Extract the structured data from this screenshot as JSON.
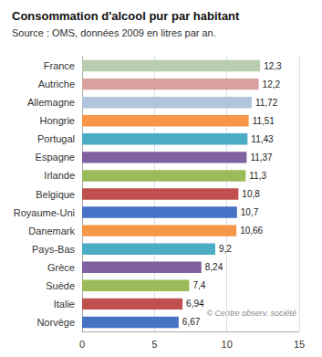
{
  "chart_data": {
    "type": "bar",
    "orientation": "horizontal",
    "title": "Consommation d'alcool pur par habitant",
    "subtitle": "Source : OMS, données 2009 en litres par an.",
    "annotations": [
      "© Centre observ. société"
    ],
    "categories": [
      "Norvège",
      "Italie",
      "Suède",
      "Grèce",
      "Pays-Bas",
      "Danemark",
      "Royaume-Uni",
      "Belgique",
      "Irlande",
      "Espagne",
      "Portugal",
      "Hongrie",
      "Allemagne",
      "Autriche",
      "France"
    ],
    "values": [
      6.67,
      6.94,
      7.4,
      8.24,
      9.2,
      10.66,
      10.7,
      10.8,
      11.3,
      11.37,
      11.43,
      11.51,
      11.72,
      12.2,
      12.3
    ],
    "value_labels": [
      "6,67",
      "6,94",
      "7,4",
      "8,24",
      "9,2",
      "10,66",
      "10,7",
      "10,8",
      "11,3",
      "11,37",
      "11,43",
      "11,51",
      "11,72",
      "12,2",
      "12,3"
    ],
    "colors": [
      "#4472C4",
      "#C0504D",
      "#9BBB59",
      "#7F60A0",
      "#4BACC6",
      "#F79646",
      "#4472C4",
      "#C0504D",
      "#9BBB59",
      "#7F60A0",
      "#4BACC6",
      "#F79646",
      "#B0C4DE",
      "#D9A0A0",
      "#B8CCB0"
    ],
    "xlim": [
      0,
      15
    ],
    "xticks": [
      0,
      5,
      10,
      15
    ],
    "grid": true,
    "data_labels": true
  }
}
